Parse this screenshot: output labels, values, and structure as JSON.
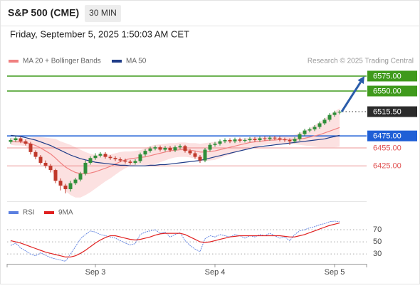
{
  "chart_data": {
    "type": "candlestick",
    "title": "S&P 500 (CME)",
    "interval": "30 MIN",
    "timestamp": "Friday, September 5, 2025 1:50:03 AM CET",
    "source": "Research © 2025 Trading Central",
    "categories": [
      null,
      null,
      null,
      null,
      null,
      null,
      null,
      null,
      null,
      null,
      null,
      null,
      null,
      null,
      null,
      null,
      null,
      "Sep 3",
      null,
      null,
      null,
      null,
      null,
      null,
      null,
      null,
      null,
      null,
      null,
      null,
      null,
      null,
      null,
      null,
      null,
      null,
      null,
      null,
      null,
      null,
      null,
      "Sep 4",
      null,
      null,
      null,
      null,
      null,
      null,
      null,
      null,
      null,
      null,
      null,
      null,
      null,
      null,
      null,
      null,
      null,
      null,
      null,
      null,
      null,
      null,
      null,
      "Sep 5",
      null
    ],
    "open": [
      6465,
      6468,
      6471,
      6466,
      6462,
      6448,
      6440,
      6430,
      6425,
      6418,
      6400,
      6392,
      6386,
      6396,
      6402,
      6412,
      6430,
      6438,
      6442,
      6445,
      6440,
      6438,
      6436,
      6434,
      6432,
      6430,
      6433,
      6444,
      6450,
      6454,
      6456,
      6452,
      6455,
      6451,
      6456,
      6458,
      6450,
      6446,
      6440,
      6434,
      6452,
      6460,
      6462,
      6466,
      6468,
      6466,
      6469,
      6467,
      6468,
      6470,
      6468,
      6471,
      6470,
      6472,
      6471,
      6469,
      6468,
      6466,
      6470,
      6478,
      6484,
      6486,
      6490,
      6496,
      6502,
      6510,
      6514
    ],
    "high": [
      6471,
      6474,
      6474,
      6469,
      6465,
      6451,
      6443,
      6434,
      6428,
      6420,
      6404,
      6395,
      6400,
      6405,
      6415,
      6434,
      6441,
      6446,
      6448,
      6448,
      6443,
      6441,
      6439,
      6437,
      6435,
      6436,
      6447,
      6453,
      6457,
      6459,
      6459,
      6458,
      6458,
      6459,
      6461,
      6460,
      6453,
      6449,
      6443,
      6455,
      6463,
      6465,
      6469,
      6471,
      6471,
      6472,
      6472,
      6471,
      6473,
      6473,
      6474,
      6474,
      6475,
      6475,
      6474,
      6472,
      6471,
      6473,
      6481,
      6487,
      6489,
      6493,
      6499,
      6505,
      6513,
      6517,
      6518
    ],
    "low": [
      6462,
      6465,
      6463,
      6459,
      6444,
      6436,
      6427,
      6421,
      6414,
      6396,
      6384,
      6379,
      6382,
      6393,
      6399,
      6409,
      6427,
      6435,
      6439,
      6437,
      6435,
      6433,
      6431,
      6429,
      6427,
      6427,
      6430,
      6441,
      6447,
      6451,
      6449,
      6449,
      6448,
      6448,
      6453,
      6447,
      6443,
      6437,
      6430,
      6431,
      6449,
      6457,
      6459,
      6463,
      6463,
      6463,
      6464,
      6464,
      6465,
      6465,
      6465,
      6467,
      6467,
      6468,
      6466,
      6465,
      6460,
      6463,
      6467,
      6475,
      6481,
      6483,
      6487,
      6493,
      6499,
      6507,
      6511
    ],
    "close": [
      6468,
      6471,
      6466,
      6462,
      6448,
      6440,
      6430,
      6425,
      6418,
      6400,
      6392,
      6386,
      6396,
      6402,
      6412,
      6430,
      6438,
      6442,
      6445,
      6440,
      6438,
      6436,
      6434,
      6432,
      6430,
      6433,
      6444,
      6450,
      6454,
      6456,
      6452,
      6455,
      6451,
      6456,
      6458,
      6450,
      6446,
      6440,
      6434,
      6452,
      6460,
      6462,
      6466,
      6468,
      6466,
      6469,
      6467,
      6468,
      6470,
      6468,
      6471,
      6470,
      6472,
      6471,
      6469,
      6468,
      6466,
      6470,
      6478,
      6484,
      6486,
      6490,
      6496,
      6502,
      6510,
      6514,
      6515.5
    ],
    "up_color": "#2f8f3a",
    "down_color": "#c0392b",
    "ylim": [
      6367,
      6613
    ],
    "overlays": [
      {
        "name": "MA 20 + Bollinger Bands",
        "color": "#f08080",
        "band_color": "#fbdada",
        "values": [
          6466,
          6465,
          6465,
          6464,
          6462,
          6459,
          6455,
          6450,
          6445,
          6438,
          6430,
          6423,
          6418,
          6414,
          6412,
          6412,
          6413,
          6415,
          6418,
          6421,
          6424,
          6428,
          6432,
          6435,
          6437,
          6438,
          6439,
          6440,
          6442,
          6444,
          6446,
          6448,
          6450,
          6451,
          6452,
          6452,
          6451,
          6450,
          6448,
          6448,
          6449,
          6450,
          6452,
          6454,
          6456,
          6458,
          6460,
          6462,
          6464,
          6465,
          6466,
          6467,
          6468,
          6468,
          6469,
          6469,
          6469,
          6469,
          6470,
          6471,
          6473,
          6475,
          6477,
          6480,
          6483,
          6486,
          6489
        ],
        "upper": [
          6472,
          6471,
          6471,
          6470,
          6472,
          6473,
          6473,
          6472,
          6471,
          6470,
          6466,
          6463,
          6460,
          6456,
          6452,
          6448,
          6445,
          6443,
          6443,
          6443,
          6444,
          6446,
          6448,
          6449,
          6449,
          6450,
          6451,
          6454,
          6458,
          6460,
          6461,
          6462,
          6463,
          6463,
          6464,
          6464,
          6463,
          6463,
          6462,
          6463,
          6464,
          6465,
          6466,
          6467,
          6468,
          6469,
          6470,
          6471,
          6472,
          6473,
          6473,
          6474,
          6475,
          6475,
          6476,
          6476,
          6476,
          6477,
          6480,
          6483,
          6488,
          6493,
          6498,
          6504,
          6510,
          6516,
          6521
        ],
        "lower": [
          6460,
          6459,
          6459,
          6458,
          6452,
          6445,
          6437,
          6428,
          6419,
          6406,
          6394,
          6383,
          6376,
          6372,
          6372,
          6376,
          6381,
          6387,
          6393,
          6399,
          6404,
          6410,
          6416,
          6421,
          6425,
          6426,
          6427,
          6426,
          6426,
          6428,
          6431,
          6434,
          6437,
          6439,
          6440,
          6440,
          6439,
          6437,
          6434,
          6433,
          6434,
          6435,
          6438,
          6441,
          6444,
          6447,
          6450,
          6453,
          6456,
          6457,
          6459,
          6460,
          6461,
          6461,
          6462,
          6462,
          6462,
          6461,
          6460,
          6459,
          6458,
          6457,
          6456,
          6456,
          6456,
          6456,
          6457
        ]
      },
      {
        "name": "MA 50",
        "color": "#1f3c88",
        "values": [
          6476,
          6475,
          6474,
          6472,
          6470,
          6468,
          6465,
          6462,
          6459,
          6455,
          6451,
          6447,
          6443,
          6440,
          6437,
          6435,
          6433,
          6431,
          6430,
          6429,
          6428,
          6427,
          6426,
          6426,
          6425,
          6425,
          6425,
          6425,
          6426,
          6426,
          6427,
          6427,
          6428,
          6429,
          6430,
          6431,
          6432,
          6433,
          6434,
          6436,
          6438,
          6440,
          6442,
          6444,
          6446,
          6448,
          6450,
          6452,
          6454,
          6456,
          6457,
          6458,
          6459,
          6460,
          6461,
          6462,
          6463,
          6464,
          6465,
          6466,
          6467,
          6468,
          6469,
          6470,
          6472,
          6474,
          6476
        ]
      }
    ],
    "levels": [
      {
        "value": 6575,
        "label": "6575.00",
        "color": "#3f9a1c",
        "style": "box",
        "line": "solid"
      },
      {
        "value": 6550,
        "label": "6550.00",
        "color": "#3f9a1c",
        "style": "box",
        "line": "solid"
      },
      {
        "value": 6515.5,
        "label": "6515.50",
        "color": "#2b2b2b",
        "style": "box",
        "line": "dotted"
      },
      {
        "value": 6475,
        "label": "6475.00",
        "color": "#1f5fd6",
        "style": "box",
        "line": "solid"
      },
      {
        "value": 6455,
        "label": "6455.00",
        "color": "#e05050",
        "style": "text",
        "line": "solid"
      },
      {
        "value": 6425,
        "label": "6425.00",
        "color": "#e05050",
        "style": "text",
        "line": "solid"
      }
    ],
    "rsi": {
      "type": "line",
      "ylim": [
        15,
        91
      ],
      "yticks": [
        30,
        50,
        70
      ],
      "series": [
        {
          "name": "RSI",
          "color": "#5b7fe0",
          "values": [
            44,
            48,
            40,
            35,
            30,
            27,
            32,
            28,
            24,
            22,
            20,
            18,
            30,
            42,
            55,
            62,
            68,
            66,
            62,
            60,
            58,
            56,
            52,
            48,
            45,
            47,
            62,
            66,
            68,
            70,
            64,
            66,
            58,
            62,
            65,
            52,
            44,
            38,
            34,
            55,
            60,
            58,
            62,
            60,
            58,
            62,
            60,
            56,
            60,
            58,
            62,
            60,
            64,
            60,
            56,
            58,
            52,
            62,
            68,
            70,
            73,
            75,
            78,
            80,
            83,
            84,
            83
          ]
        },
        {
          "name": "9MA",
          "color": "#e02020",
          "values": [
            52,
            50,
            48,
            45,
            42,
            39,
            36,
            33,
            31,
            29,
            27,
            25,
            25,
            27,
            31,
            36,
            42,
            48,
            53,
            57,
            60,
            60,
            58,
            56,
            54,
            53,
            54,
            56,
            58,
            61,
            63,
            64,
            64,
            64,
            64,
            62,
            58,
            54,
            50,
            49,
            50,
            52,
            54,
            56,
            58,
            59,
            60,
            60,
            60,
            60,
            60,
            60,
            60,
            60,
            60,
            59,
            58,
            58,
            60,
            62,
            65,
            68,
            71,
            74,
            77,
            79,
            81
          ]
        }
      ]
    }
  }
}
